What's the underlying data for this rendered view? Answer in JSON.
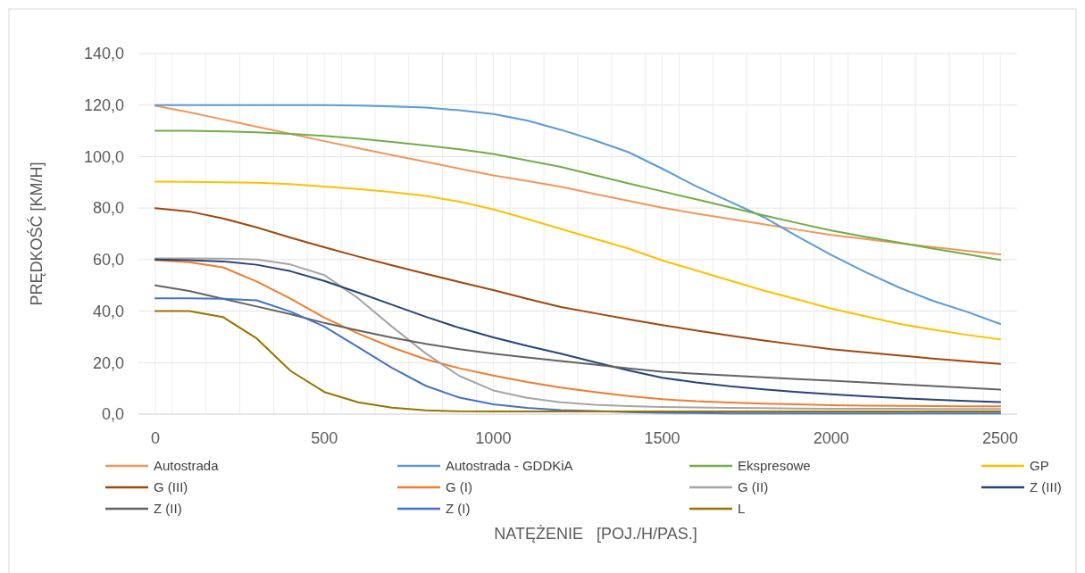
{
  "chart_data": {
    "type": "line",
    "xlabel": "NATĘŻENIE   [POJ./H/PAS.]",
    "ylabel": "PRĘDKOŚĆ [KM/H]",
    "x": [
      0,
      100,
      200,
      300,
      400,
      500,
      600,
      700,
      800,
      900,
      1000,
      1100,
      1200,
      1300,
      1400,
      1500,
      1600,
      1700,
      1800,
      1900,
      2000,
      2100,
      2200,
      2300,
      2400,
      2500
    ],
    "xlim": [
      -50,
      2550
    ],
    "xticks": [
      0,
      500,
      1000,
      1500,
      2000,
      2500,
      {
        "value": 50,
        "label": null
      },
      {
        "value": 150,
        "label": null
      },
      {
        "value": 250,
        "label": null
      },
      {
        "value": 350,
        "label": null
      },
      {
        "value": 450,
        "label": null
      },
      {
        "value": 550,
        "label": null
      },
      {
        "value": 650,
        "label": null
      },
      {
        "value": 750,
        "label": null
      },
      {
        "value": 850,
        "label": null
      },
      {
        "value": 950,
        "label": null
      },
      {
        "value": 1050,
        "label": null
      },
      {
        "value": 1150,
        "label": null
      },
      {
        "value": 1250,
        "label": null
      },
      {
        "value": 1350,
        "label": null
      },
      {
        "value": 1450,
        "label": null
      },
      {
        "value": 1550,
        "label": null
      },
      {
        "value": 1650,
        "label": null
      },
      {
        "value": 1750,
        "label": null
      },
      {
        "value": 1850,
        "label": null
      },
      {
        "value": 1950,
        "label": null
      },
      {
        "value": 2050,
        "label": null
      },
      {
        "value": 2150,
        "label": null
      },
      {
        "value": 2250,
        "label": null
      },
      {
        "value": 2350,
        "label": null
      },
      {
        "value": 2450,
        "label": null
      }
    ],
    "ylim": [
      0,
      140
    ],
    "yticks": [
      {
        "value": 0,
        "label": "0,0"
      },
      {
        "value": 20,
        "label": "20,0"
      },
      {
        "value": 40,
        "label": "40,0"
      },
      {
        "value": 60,
        "label": "60,0"
      },
      {
        "value": 80,
        "label": "80,0"
      },
      {
        "value": 100,
        "label": "100,0"
      },
      {
        "value": 120,
        "label": "120,0"
      },
      {
        "value": 140,
        "label": "140,0"
      }
    ],
    "grid": true,
    "legend": "bottom",
    "marker": "none",
    "line_style": "solid",
    "series": [
      {
        "name": "Autostrada",
        "color": "#f1975a",
        "values": [
          119.7,
          117.2,
          114.4,
          111.6,
          108.8,
          106,
          103.3,
          100.6,
          98,
          95.3,
          92.7,
          90.5,
          88.3,
          85.5,
          82.8,
          80.1,
          77.9,
          75.8,
          73.7,
          71.6,
          69.6,
          68,
          66.4,
          64.9,
          63.4,
          62
        ]
      },
      {
        "name": "Autostrada - GDDKiA",
        "color": "#5b9bd5",
        "values": [
          120,
          120,
          120,
          120,
          120,
          120,
          119.8,
          119.5,
          119,
          118,
          116.5,
          114,
          110.4,
          106.3,
          101.7,
          95.3,
          88.5,
          82.5,
          76.5,
          69,
          61.8,
          55.2,
          49.2,
          44,
          39.8,
          35
        ]
      },
      {
        "name": "Ekspresowe",
        "color": "#70ad47",
        "values": [
          110,
          110,
          109.8,
          109.4,
          108.8,
          108,
          107,
          105.7,
          104.3,
          102.8,
          101,
          98.5,
          96,
          92.8,
          89.6,
          86.5,
          83.4,
          80.3,
          77.2,
          74.2,
          71.3,
          68.9,
          66.6,
          64.3,
          62.1,
          59.9
        ]
      },
      {
        "name": "GP",
        "color": "#ffc000",
        "values": [
          90.3,
          90.2,
          90,
          89.8,
          89.3,
          88.4,
          87.4,
          86.2,
          84.7,
          82.5,
          79.5,
          75.8,
          71.9,
          68.1,
          64.3,
          59.7,
          55.8,
          51.9,
          48,
          44.5,
          41,
          38,
          35.1,
          32.8,
          30.8,
          29
        ]
      },
      {
        "name": "G (III)",
        "color": "#9e480e",
        "values": [
          80,
          78.7,
          76,
          72.5,
          68.5,
          64.8,
          61.2,
          57.8,
          54.5,
          51.3,
          48.2,
          44.8,
          41.6,
          39.2,
          36.8,
          34.6,
          32.5,
          30.5,
          28.6,
          26.9,
          25.2,
          24,
          22.8,
          21.6,
          20.5,
          19.5
        ]
      },
      {
        "name": "G (I)",
        "color": "#ed7d31",
        "values": [
          59.8,
          59,
          57,
          51.5,
          44.8,
          37.5,
          31.3,
          25.9,
          21.3,
          17.8,
          15,
          12.5,
          10.3,
          8.6,
          7,
          5.8,
          5,
          4.5,
          4.1,
          3.8,
          3.5,
          3.3,
          3.2,
          3.1,
          3,
          3
        ]
      },
      {
        "name": "G (II)",
        "color": "#a5a5a5",
        "values": [
          60.5,
          60.5,
          60.4,
          60,
          58.1,
          54,
          45,
          34,
          23.6,
          14.8,
          9.2,
          6.3,
          4.6,
          3.6,
          3.1,
          2.8,
          2.6,
          2.4,
          2.3,
          2.2,
          2.1,
          2.1,
          2.1,
          2,
          2,
          2
        ]
      },
      {
        "name": "Z (III)",
        "color": "#264478",
        "values": [
          60,
          59.8,
          59.3,
          58,
          55.5,
          51.7,
          47.2,
          42.5,
          37.8,
          33.5,
          29.8,
          26.5,
          23.5,
          20.2,
          17,
          14.1,
          12.3,
          10.8,
          9.6,
          8.6,
          7.7,
          6.9,
          6.2,
          5.6,
          5.1,
          4.7
        ]
      },
      {
        "name": "Z (II)",
        "color": "#636363",
        "values": [
          50,
          47.8,
          44.8,
          41.8,
          38.8,
          35.4,
          32.5,
          29.7,
          27.3,
          25.2,
          23.5,
          22,
          20.6,
          19.2,
          17.8,
          16.5,
          15.7,
          15,
          14.3,
          13.6,
          13,
          12.3,
          11.6,
          10.9,
          10.2,
          9.5
        ]
      },
      {
        "name": "Z (I)",
        "color": "#4472c4",
        "values": [
          45,
          45,
          44.8,
          44.2,
          39.8,
          34,
          26,
          18,
          11,
          6.4,
          3.8,
          2.4,
          1.6,
          1.2,
          0.8,
          0.5,
          0.4,
          0.3,
          0.3,
          0.3,
          0.3,
          0.3,
          0.3,
          0.3,
          0.3,
          0.3
        ]
      },
      {
        "name": "L",
        "color": "#997300",
        "values": [
          40,
          40,
          37.7,
          29.4,
          16.8,
          8.6,
          4.6,
          2.5,
          1.5,
          1.1,
          1,
          1,
          1,
          1,
          1,
          1,
          1,
          1,
          1,
          1,
          1,
          1,
          1,
          1,
          1,
          1
        ]
      }
    ]
  }
}
